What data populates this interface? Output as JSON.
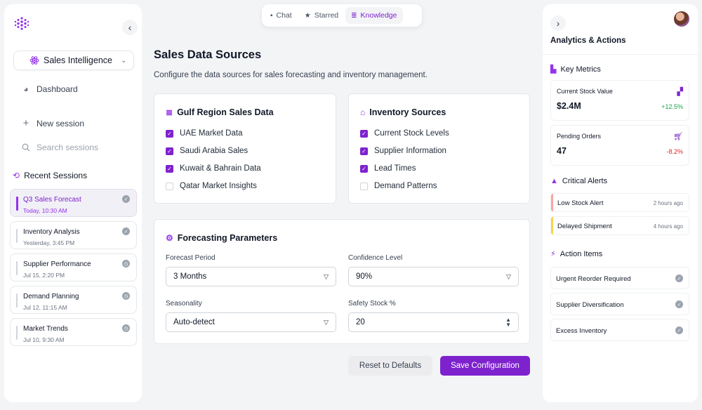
{
  "tabs": [
    {
      "label": "Chat",
      "icon": "chat-icon"
    },
    {
      "label": "Starred",
      "icon": "star-icon"
    },
    {
      "label": "Knowledge",
      "icon": "database-icon",
      "active": true
    }
  ],
  "sidebar": {
    "workspace": "Sales Intelligence",
    "dashboard": "Dashboard",
    "new_session": "New session",
    "search_placeholder": "Search sessions",
    "recent_heading": "Recent Sessions",
    "sessions": [
      {
        "title": "Q3 Sales Forecast",
        "date": "Today, 10:30 AM",
        "status": "done",
        "active": true
      },
      {
        "title": "Inventory Analysis",
        "date": "Yesterday, 3:45 PM",
        "status": "done"
      },
      {
        "title": "Supplier Performance",
        "date": "Jul 15, 2:20 PM",
        "status": "pending"
      },
      {
        "title": "Demand Planning",
        "date": "Jul 12, 11:15 AM",
        "status": "pending"
      },
      {
        "title": "Market Trends",
        "date": "Jul 10, 9:30 AM",
        "status": "pending"
      }
    ]
  },
  "main": {
    "title": "Sales Data Sources",
    "description": "Configure the data sources for sales forecasting and inventory management.",
    "gulf_card": {
      "title": "Gulf Region Sales Data",
      "items": [
        {
          "label": "UAE Market Data",
          "checked": true
        },
        {
          "label": "Saudi Arabia Sales",
          "checked": true
        },
        {
          "label": "Kuwait & Bahrain Data",
          "checked": true
        },
        {
          "label": "Qatar Market Insights",
          "checked": false
        }
      ]
    },
    "inventory_card": {
      "title": "Inventory Sources",
      "items": [
        {
          "label": "Current Stock Levels",
          "checked": true
        },
        {
          "label": "Supplier Information",
          "checked": true
        },
        {
          "label": "Lead Times",
          "checked": true
        },
        {
          "label": "Demand Patterns",
          "checked": false
        }
      ]
    },
    "forecast": {
      "title": "Forecasting Parameters",
      "period_label": "Forecast Period",
      "period_value": "3 Months",
      "confidence_label": "Confidence Level",
      "confidence_value": "90%",
      "seasonality_label": "Seasonality",
      "seasonality_value": "Auto-detect",
      "safety_label": "Safety Stock %",
      "safety_value": "20"
    },
    "reset_label": "Reset to Defaults",
    "save_label": "Save Configuration"
  },
  "right": {
    "title": "Analytics & Actions",
    "metrics_heading": "Key Metrics",
    "metrics": [
      {
        "label": "Current Stock Value",
        "value": "$2.4M",
        "change": "+12.5%",
        "change_color": "#16a34a",
        "icon": "boxes-icon"
      },
      {
        "label": "Pending Orders",
        "value": "47",
        "change": "-8.2%",
        "change_color": "#dc2626",
        "icon": "cart-icon"
      }
    ],
    "alerts_heading": "Critical Alerts",
    "alerts": [
      {
        "title": "Low Stock Alert",
        "time": "2 hours ago",
        "color": "#fca5a5"
      },
      {
        "title": "Delayed Shipment",
        "time": "4 hours ago",
        "color": "#fcd34d"
      }
    ],
    "actions_heading": "Action Items",
    "actions": [
      {
        "title": "Urgent Reorder Required"
      },
      {
        "title": "Supplier Diversification"
      },
      {
        "title": "Excess Inventory"
      }
    ]
  },
  "colors": {
    "accent": "#7e22ce"
  }
}
